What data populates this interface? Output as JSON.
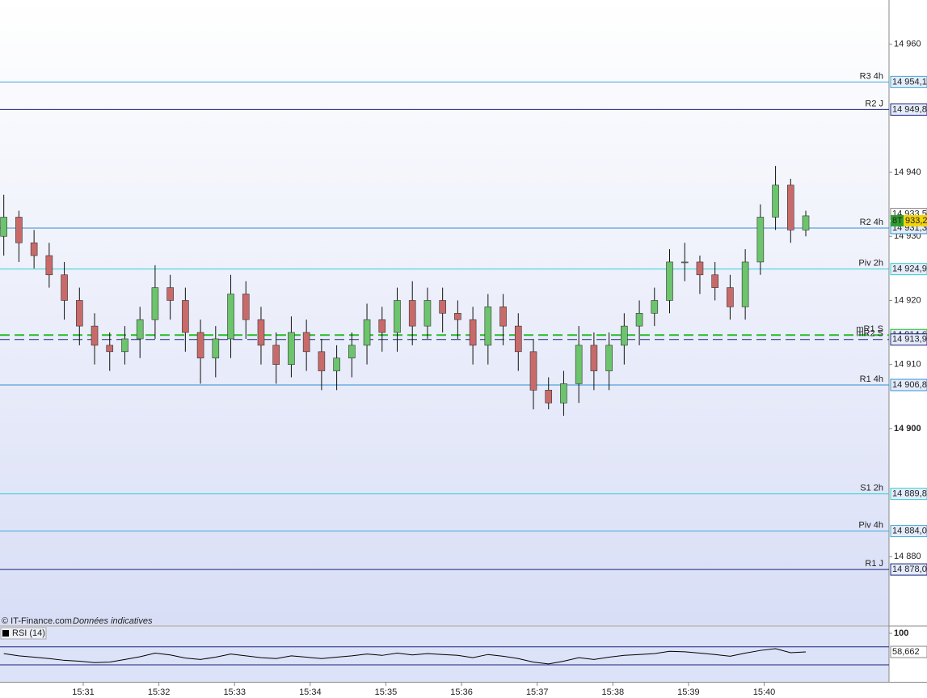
{
  "chart_data": {
    "type": "candlestick",
    "source": "© IT-Finance.com",
    "note": "Données indicatives",
    "x": [
      929.95,
      930.15,
      930.35,
      930.55,
      930.75,
      930.95,
      931.15,
      931.35,
      931.55,
      931.75,
      931.95,
      932.15,
      932.35,
      932.55,
      932.75,
      932.95,
      933.15,
      933.35,
      933.55,
      933.75,
      933.95,
      934.15,
      934.35,
      934.55,
      934.75,
      934.95,
      935.15,
      935.35,
      935.55,
      935.75,
      935.95,
      936.15,
      936.35,
      936.55,
      936.75,
      936.95,
      937.15,
      937.35,
      937.55,
      937.75,
      937.95,
      938.15,
      938.35,
      938.55,
      938.75,
      938.95,
      939.15,
      939.35,
      939.55,
      939.75,
      939.95,
      940.15,
      940.35,
      940.55
    ],
    "open": [
      14930,
      14933,
      14929,
      14927,
      14924,
      14920,
      14916,
      14913,
      14912,
      14914,
      14917,
      14922,
      14920,
      14915,
      14911,
      14914,
      14921,
      14917,
      14913,
      14910,
      14915,
      14912,
      14909,
      14911,
      14913,
      14917,
      14915,
      14920,
      14916,
      14920,
      14918,
      14917,
      14913,
      14919,
      14916,
      14912,
      14906,
      14904,
      14907,
      14913,
      14909,
      14913,
      14916,
      14918,
      14920,
      14926,
      14926,
      14924,
      14922,
      14919,
      14926,
      14933,
      14938,
      14931
    ],
    "high": [
      14936.5,
      14934,
      14931,
      14929,
      14926,
      14922,
      14918,
      14915,
      14916,
      14919,
      14925.5,
      14924,
      14922,
      14917,
      14916,
      14924,
      14923,
      14919,
      14915,
      14917.5,
      14917,
      14914,
      14913,
      14915,
      14919.5,
      14919,
      14922,
      14923,
      14922,
      14922,
      14920,
      14919,
      14921,
      14921,
      14918,
      14914,
      14908,
      14909,
      14916,
      14915,
      14915,
      14918,
      14920,
      14922,
      14928,
      14929,
      14927,
      14926,
      14924,
      14928,
      14935,
      14941,
      14939,
      14934
    ],
    "low": [
      14927,
      14926,
      14925,
      14922,
      14917,
      14913,
      14910,
      14909,
      14910,
      14911,
      14914,
      14917,
      14912,
      14907,
      14908,
      14911,
      14914,
      14910,
      14907,
      14908,
      14909,
      14906,
      14906,
      14908,
      14910,
      14912,
      14912,
      14913,
      14914,
      14915,
      14914,
      14910,
      14910,
      14913,
      14909,
      14903,
      14903,
      14902,
      14904,
      14906,
      14906,
      14910,
      14913,
      14916,
      14918,
      14923,
      14921,
      14920,
      14917,
      14917,
      14924,
      14931,
      14929,
      14930
    ],
    "close": [
      14933,
      14929,
      14927,
      14924,
      14920,
      14916,
      14913,
      14912,
      14914,
      14917,
      14922,
      14920,
      14915,
      14911,
      14914,
      14921,
      14917,
      14913,
      14910,
      14915,
      14912,
      14909,
      14911,
      14913,
      14917,
      14915,
      14920,
      14916,
      14920,
      14918,
      14917,
      14913,
      14919,
      14916,
      14912,
      14906,
      14904,
      14907,
      14913,
      14909,
      14913,
      14916,
      14918,
      14920,
      14926,
      14926,
      14924,
      14922,
      14919,
      14926,
      14933,
      14938,
      14931,
      14933.2
    ],
    "up_color": "#6cc46c",
    "down_color": "#c96a6a",
    "xlim": [
      929.9,
      941.65
    ],
    "xticks": [
      {
        "value": 931,
        "label": "15:31"
      },
      {
        "value": 932,
        "label": "15:32"
      },
      {
        "value": 933,
        "label": "15:33"
      },
      {
        "value": 934,
        "label": "15:34"
      },
      {
        "value": 935,
        "label": "15:35"
      },
      {
        "value": 936,
        "label": "15:36"
      },
      {
        "value": 937,
        "label": "15:37"
      },
      {
        "value": 938,
        "label": "15:38"
      },
      {
        "value": 939,
        "label": "15:39"
      },
      {
        "value": 940,
        "label": "15:40"
      }
    ],
    "ylim": [
      14869.3,
      14966.9
    ],
    "yticks": [
      {
        "value": 14960,
        "label": "14 960"
      },
      {
        "value": 14940,
        "label": "14 940"
      },
      {
        "value": 14930,
        "label": "14 930"
      },
      {
        "value": 14920,
        "label": "14 920"
      },
      {
        "value": 14910,
        "label": "14 910"
      },
      {
        "value": 14900,
        "label": "14 900"
      },
      {
        "value": 14880,
        "label": "14 880"
      }
    ],
    "levels": [
      {
        "name": "R3 4h",
        "value": 14954.1,
        "value_label": "14 954,1",
        "color": "#3fa7d6",
        "dashed": false
      },
      {
        "name": "R2 J",
        "value": 14949.8,
        "value_label": "14 949,8",
        "color": "#1a237e",
        "dashed": false
      },
      {
        "name": "R2 4h",
        "value": 14931.3,
        "value_label": "14 931,3",
        "color": "#2f8fd0",
        "dashed": false
      },
      {
        "name": "Piv 2h",
        "value": 14924.9,
        "value_label": "14 924,9",
        "color": "#2fd0d0",
        "dashed": false
      },
      {
        "name": "mR1 S",
        "value": 14914.6,
        "value_label": "14 914,6",
        "color": "#22bb22",
        "dashed": true
      },
      {
        "name": "mR2 S",
        "value": 14913.9,
        "value_label": "14 913,9",
        "color": "#1a237e",
        "dashed": true
      },
      {
        "name": "R1 4h",
        "value": 14906.8,
        "value_label": "14 906,8",
        "color": "#2f8fd0",
        "dashed": false
      },
      {
        "name": "S1 2h",
        "value": 14889.8,
        "value_label": "14 889,8",
        "color": "#2fd0d0",
        "dashed": false
      },
      {
        "name": "Piv 4h",
        "value": 14884.0,
        "value_label": "14 884,0",
        "color": "#3fa7d6",
        "dashed": false
      },
      {
        "name": "R1 J",
        "value": 14878.0,
        "value_label": "14 878,0",
        "color": "#1a237e",
        "dashed": false
      }
    ],
    "last_price": {
      "value": 14933.5,
      "label": "14 933,5"
    },
    "last_close": {
      "tag": "8T",
      "value": 14933.2,
      "label": "933,2"
    },
    "indicator": {
      "type": "line",
      "name": "RSI (14)",
      "color": "#000000",
      "values": [
        55,
        50,
        47,
        44,
        40,
        38,
        35,
        36,
        42,
        48,
        56,
        52,
        45,
        42,
        47,
        54,
        50,
        46,
        44,
        50,
        47,
        44,
        47,
        50,
        54,
        51,
        56,
        52,
        55,
        53,
        51,
        46,
        53,
        49,
        44,
        36,
        32,
        38,
        46,
        42,
        47,
        51,
        53,
        55,
        60,
        59,
        56,
        53,
        49,
        56,
        62,
        66,
        57,
        58.662
      ],
      "last_label": "58,662",
      "ylim": [
        -7.7,
        114.4
      ],
      "yticks": [
        100
      ],
      "levels": [
        70,
        30
      ]
    }
  }
}
